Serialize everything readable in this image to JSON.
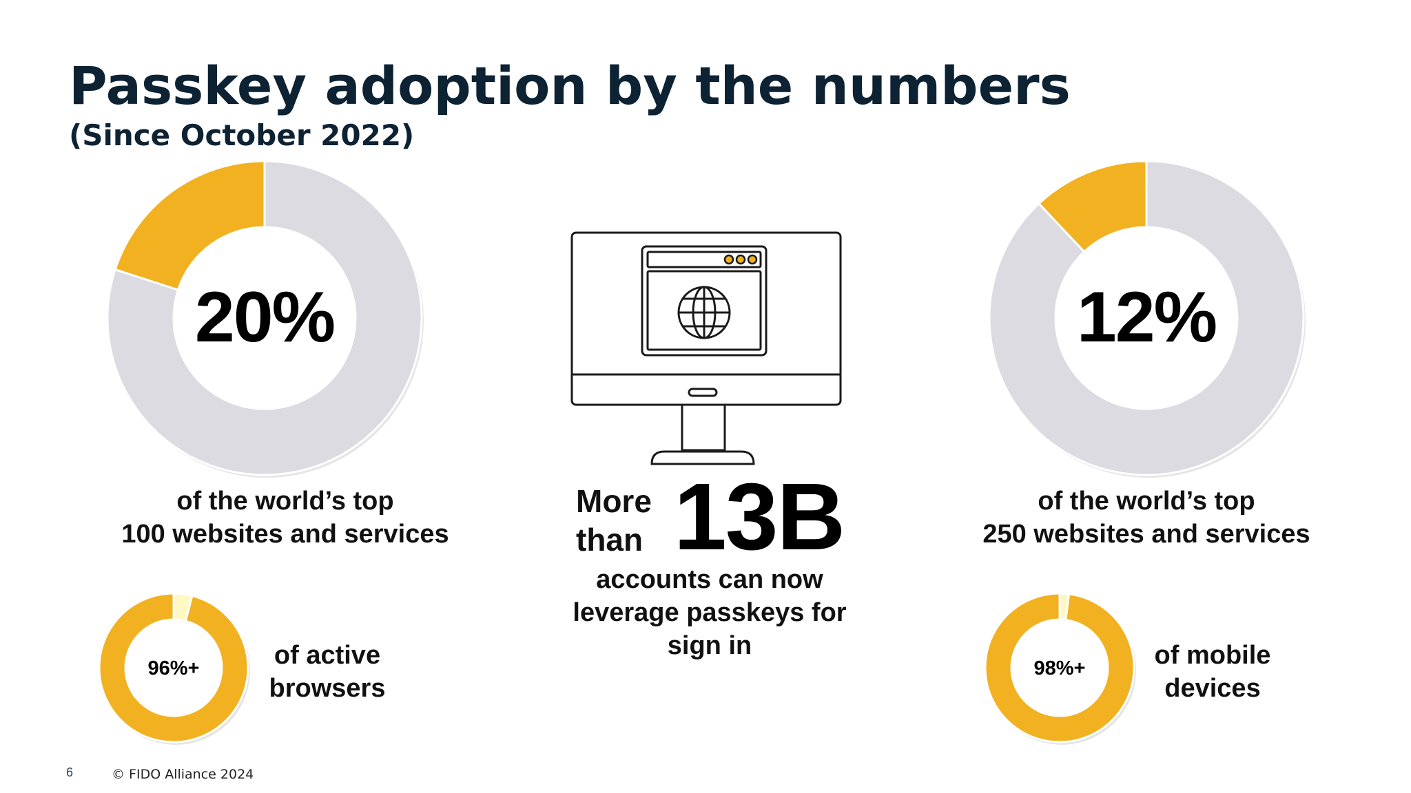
{
  "slide": {
    "title": "Passkey adoption by the numbers",
    "subtitle": "(Since October 2022)"
  },
  "colors": {
    "accent": "#f2b120",
    "light_accent": "#fff8c2",
    "track": "#dcdbe2",
    "title": "#0d2233"
  },
  "chart_data": [
    {
      "type": "pie",
      "label": "20%",
      "caption_line1": "of the world’s top",
      "caption_line2": "100 websites and services",
      "slices": [
        {
          "name": "",
          "value": 20
        },
        {
          "name": "",
          "value": 80
        }
      ]
    },
    {
      "type": "pie",
      "label": "12%",
      "caption_line1": "of the world’s top",
      "caption_line2": "250 websites and services",
      "slices": [
        {
          "name": "",
          "value": 12
        },
        {
          "name": "",
          "value": 88
        }
      ]
    },
    {
      "type": "pie",
      "label": "96%+",
      "caption_line1": "of active",
      "caption_line2": "browsers",
      "slices": [
        {
          "name": "",
          "value": 96
        },
        {
          "name": "",
          "value": 4
        }
      ]
    },
    {
      "type": "pie",
      "label": "98%+",
      "caption_line1": "of mobile",
      "caption_line2": "devices",
      "slices": [
        {
          "name": "",
          "value": 98
        },
        {
          "name": "",
          "value": 2
        }
      ]
    }
  ],
  "center": {
    "more": "More",
    "than": "than",
    "number": "13B",
    "line1": "accounts can now",
    "line2": "leverage passkeys for",
    "line3": "sign in",
    "icon": "desktop-monitor-globe-icon"
  },
  "footer": {
    "page_number": "6",
    "copyright": "© FIDO Alliance 2024"
  }
}
